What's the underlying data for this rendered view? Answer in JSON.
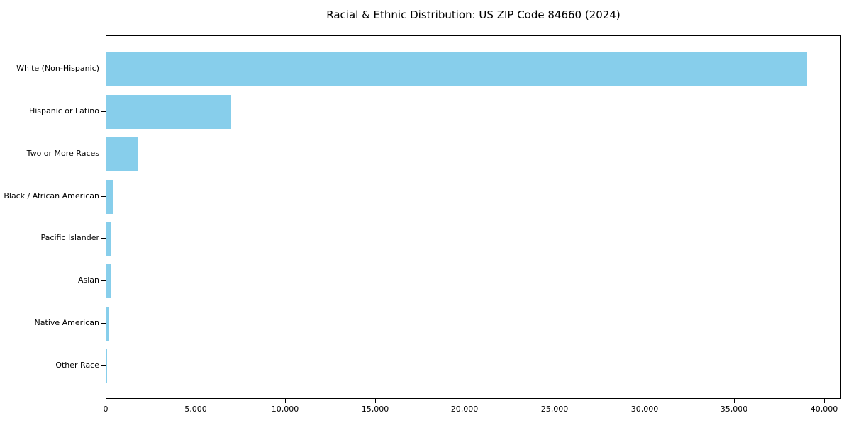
{
  "chart_data": {
    "type": "bar",
    "orientation": "horizontal",
    "title": "Racial & Ethnic Distribution: US ZIP Code 84660 (2024)",
    "categories": [
      "White (Non-Hispanic)",
      "Hispanic or Latino",
      "Two or More Races",
      "Black / African American",
      "Pacific Islander",
      "Asian",
      "Native American",
      "Other Race"
    ],
    "values": [
      39000,
      6950,
      1750,
      350,
      240,
      235,
      105,
      10
    ],
    "bar_color": "#87CEEB",
    "xlim": [
      0,
      40950
    ],
    "xticks": [
      0,
      5000,
      10000,
      15000,
      20000,
      25000,
      30000,
      35000,
      40000
    ],
    "xtick_labels": [
      "0",
      "5,000",
      "10,000",
      "15,000",
      "20,000",
      "25,000",
      "30,000",
      "35,000",
      "40,000"
    ],
    "xlabel": "",
    "ylabel": "",
    "grid": false,
    "legend_position": "none",
    "axes_color": "#000000",
    "text_color": "#000000",
    "background_color": "#ffffff"
  }
}
